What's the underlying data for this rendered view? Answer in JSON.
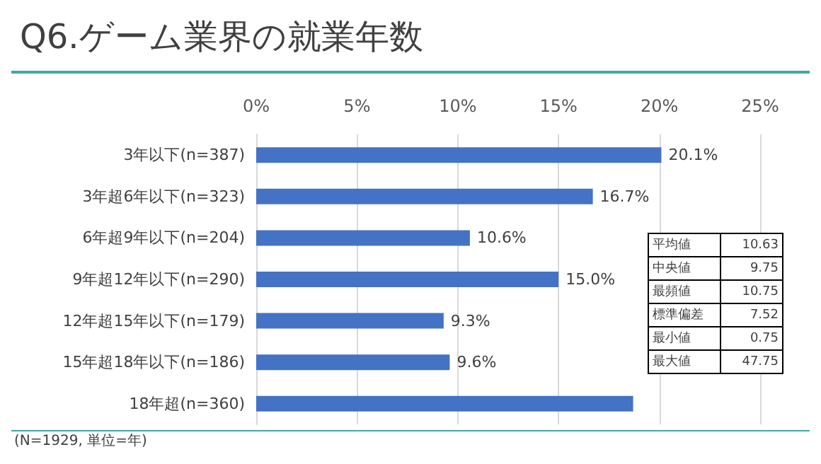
{
  "chart_data": {
    "type": "bar",
    "orientation": "horizontal",
    "title": "Q6.ゲーム業界の就業年数",
    "categories": [
      "3年以下(n=387)",
      "3年超6年以下(n=323)",
      "6年超9年以下(n=204)",
      "9年超12年以下(n=290)",
      "12年超15年以下(n=179)",
      "15年超18年以下(n=186)",
      "18年超(n=360)"
    ],
    "values": [
      20.1,
      16.7,
      10.6,
      15.0,
      9.3,
      9.6,
      18.7
    ],
    "value_labels": [
      "20.1%",
      "16.7%",
      "10.6%",
      "15.0%",
      "9.3%",
      "9.6%",
      null
    ],
    "color": "#4472c4",
    "xlim": [
      0,
      25
    ],
    "xticks": [
      {
        "value": 0,
        "label": "0%"
      },
      {
        "value": 5,
        "label": "5%"
      },
      {
        "value": 10,
        "label": "10%"
      },
      {
        "value": 15,
        "label": "15%"
      },
      {
        "value": 20,
        "label": "20%"
      },
      {
        "value": 25,
        "label": "25%"
      }
    ],
    "grid": "x",
    "annotations": [
      "(N=1929, 単位=年)",
      "平均値",
      "10.63",
      "中央値",
      "9.75",
      "最頻値",
      "10.75",
      "標準偏差",
      "7.52",
      "最小値",
      "0.75",
      "最大値",
      "47.75"
    ]
  }
}
